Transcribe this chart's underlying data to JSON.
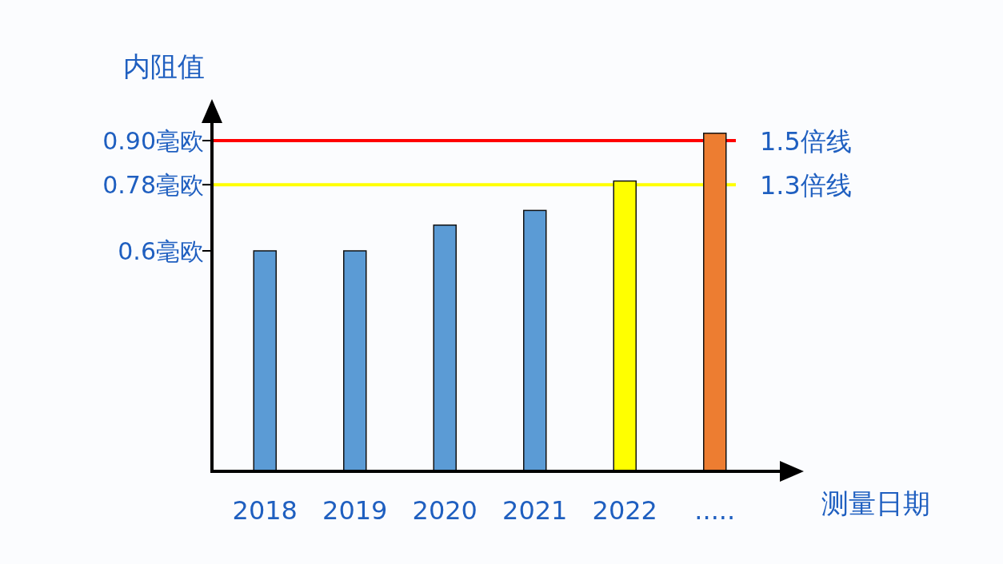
{
  "chart_data": {
    "type": "bar",
    "ylabel": "内阻值",
    "xlabel": "测量日期",
    "categories": [
      "2018",
      "2019",
      "2020",
      "2021",
      "2022",
      "....."
    ],
    "values": [
      0.6,
      0.6,
      0.67,
      0.71,
      0.79,
      0.92
    ],
    "colors": [
      "#5b9bd5",
      "#5b9bd5",
      "#5b9bd5",
      "#5b9bd5",
      "#ffff00",
      "#ed7d31"
    ],
    "ylim": [
      0,
      1.0
    ],
    "yticks": [
      {
        "value": 0.6,
        "label": "0.6毫欧"
      },
      {
        "value": 0.78,
        "label": "0.78毫欧"
      },
      {
        "value": 0.9,
        "label": "0.90毫欧"
      }
    ],
    "ref_lines": [
      {
        "axis": "y",
        "value": 0.9,
        "label": "1.5倍线",
        "color": "#ff0000"
      },
      {
        "axis": "y",
        "value": 0.78,
        "label": "1.3倍线",
        "color": "#ffff00"
      }
    ],
    "grid": false
  }
}
